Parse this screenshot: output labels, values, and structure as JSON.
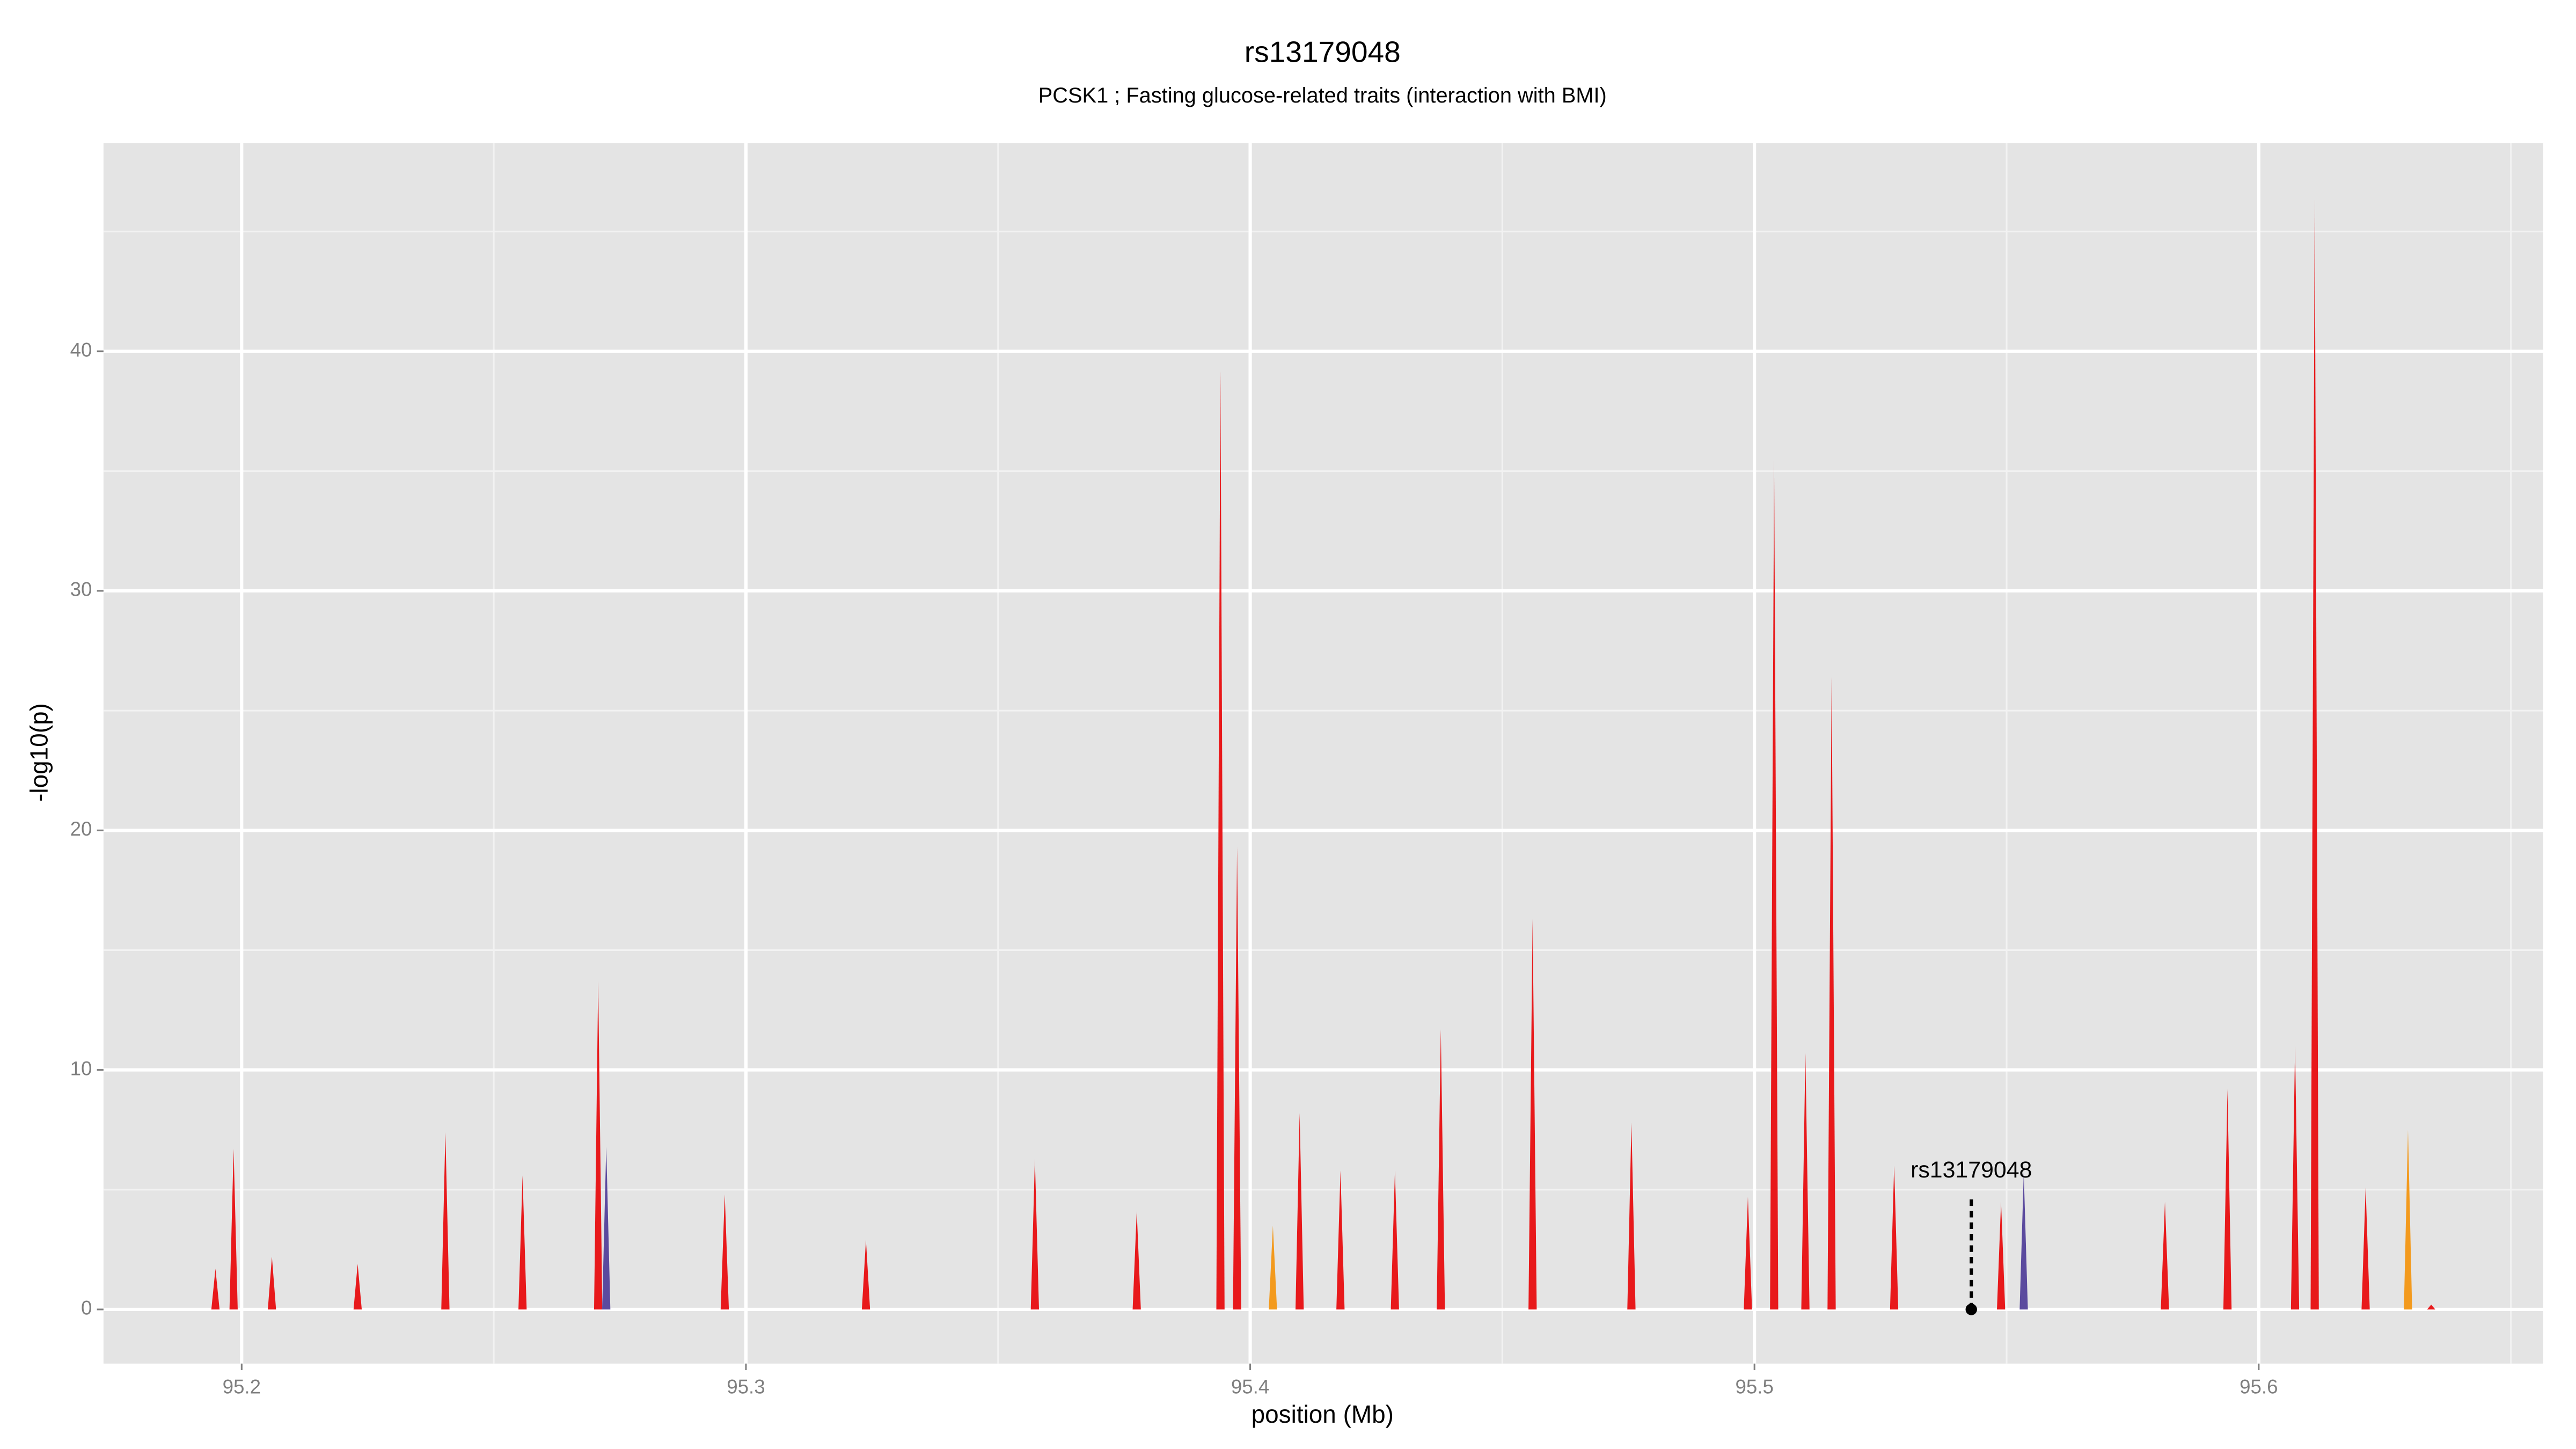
{
  "chart_data": {
    "type": "area",
    "title": "rs13179048",
    "subtitle": "PCSK1 ; Fasting glucose-related traits (interaction with BMI)",
    "xlabel": "position (Mb)",
    "ylabel": "-log10(p)",
    "xlim": [
      95.1726,
      95.6564
    ],
    "ylim": [
      -2.26,
      48.7
    ],
    "xticks": [
      95.2,
      95.3,
      95.4,
      95.5,
      95.6
    ],
    "yticks": [
      0,
      10,
      20,
      30,
      40
    ],
    "minor_xticks": [
      95.25,
      95.35,
      95.45,
      95.55,
      95.65
    ],
    "minor_yticks": [
      5,
      15,
      25,
      35,
      45
    ],
    "grid": true,
    "series": [
      {
        "name": "red",
        "color": "#e8191b",
        "x": [
          95.1948,
          95.1984,
          95.206,
          95.223,
          95.2404,
          95.2557,
          95.2707,
          95.2958,
          95.3238,
          95.3573,
          95.3775,
          95.3941,
          95.3974,
          95.4098,
          95.4179,
          95.4287,
          95.4378,
          95.456,
          95.4756,
          95.4987,
          95.5039,
          95.5101,
          95.5153,
          95.5277,
          95.5489,
          95.5814,
          95.5938,
          95.6072,
          95.6111,
          95.6212,
          95.6342
        ],
        "values": [
          1.7,
          6.7,
          2.2,
          1.9,
          7.4,
          5.6,
          13.7,
          4.8,
          2.9,
          6.3,
          4.1,
          39.2,
          19.3,
          8.2,
          5.8,
          5.8,
          11.7,
          16.3,
          7.8,
          4.7,
          35.5,
          10.7,
          26.4,
          6.0,
          4.5,
          4.5,
          9.2,
          11.0,
          46.4,
          5.1,
          0.2
        ]
      },
      {
        "name": "blue",
        "color": "#5b4a9e",
        "x": [
          95.2723,
          95.5534
        ],
        "values": [
          6.8,
          5.7
        ]
      },
      {
        "name": "orange",
        "color": "#f39a1d",
        "x": [
          95.4045,
          95.6296
        ],
        "values": [
          3.5,
          7.5
        ]
      }
    ],
    "annotation": {
      "label": "rs13179048",
      "x": 95.543,
      "y": 0
    }
  }
}
